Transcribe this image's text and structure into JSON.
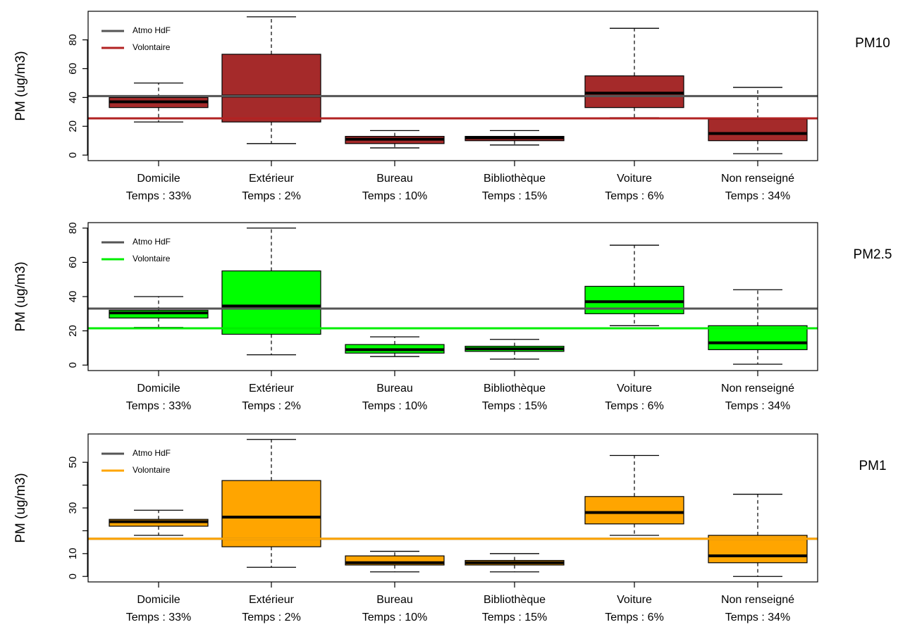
{
  "chart_data": [
    {
      "type": "boxplot",
      "title": "PM10",
      "ylabel": "PM (ug/m3)",
      "ylim": [
        0,
        96
      ],
      "yticks": [
        0,
        20,
        40,
        60,
        80
      ],
      "categories": [
        "Domicile",
        "Extérieur",
        "Bureau",
        "Bibliothèque",
        "Voiture",
        "Non renseigné"
      ],
      "time_labels": [
        "Temps : 33%",
        "Temps : 2%",
        "Temps : 10%",
        "Temps : 15%",
        "Temps : 6%",
        "Temps : 34%"
      ],
      "box_color": "#a52a2a",
      "boxes": [
        {
          "min": 23,
          "q1": 33,
          "median": 37,
          "q3": 40,
          "max": 50
        },
        {
          "min": 8,
          "q1": 23,
          "median": 41,
          "q3": 70,
          "max": 96
        },
        {
          "min": 5,
          "q1": 8,
          "median": 11,
          "q3": 13,
          "max": 17
        },
        {
          "min": 7,
          "q1": 10,
          "median": 12,
          "q3": 13,
          "max": 17
        },
        {
          "min": 26,
          "q1": 33,
          "median": 43,
          "q3": 55,
          "max": 88
        },
        {
          "min": 1,
          "q1": 10,
          "median": 15,
          "q3": 25,
          "max": 47
        }
      ],
      "reference_lines": [
        {
          "name": "Atmo HdF",
          "value": 41,
          "color": "#555555"
        },
        {
          "name": "Volontaire",
          "value": 25.5,
          "color": "#b22222"
        }
      ],
      "legend_position": "top-left"
    },
    {
      "type": "boxplot",
      "title": "PM2.5",
      "ylabel": "PM (ug/m3)",
      "ylim": [
        0,
        80
      ],
      "yticks": [
        0,
        20,
        40,
        60,
        80
      ],
      "categories": [
        "Domicile",
        "Extérieur",
        "Bureau",
        "Bibliothèque",
        "Voiture",
        "Non renseigné"
      ],
      "time_labels": [
        "Temps : 33%",
        "Temps : 2%",
        "Temps : 10%",
        "Temps : 15%",
        "Temps : 6%",
        "Temps : 34%"
      ],
      "box_color": "#00ff00",
      "boxes": [
        {
          "min": 22,
          "q1": 27.5,
          "median": 30.5,
          "q3": 32,
          "max": 40
        },
        {
          "min": 6,
          "q1": 18,
          "median": 34.5,
          "q3": 55,
          "max": 80
        },
        {
          "min": 5,
          "q1": 7,
          "median": 9,
          "q3": 12,
          "max": 16.5
        },
        {
          "min": 3.5,
          "q1": 8,
          "median": 9.5,
          "q3": 11,
          "max": 15
        },
        {
          "min": 23,
          "q1": 30,
          "median": 37,
          "q3": 46,
          "max": 70
        },
        {
          "min": 0.5,
          "q1": 9,
          "median": 13,
          "q3": 23,
          "max": 44
        }
      ],
      "reference_lines": [
        {
          "name": "Atmo HdF",
          "value": 33,
          "color": "#555555"
        },
        {
          "name": "Volontaire",
          "value": 21.5,
          "color": "#00ee00"
        }
      ],
      "legend_position": "top-left"
    },
    {
      "type": "boxplot",
      "title": "PM1",
      "ylabel": "PM (ug/m3)",
      "ylim": [
        0,
        60
      ],
      "yticks": [
        0,
        10,
        30,
        50
      ],
      "yminor": [
        20,
        40
      ],
      "categories": [
        "Domicile",
        "Extérieur",
        "Bureau",
        "Bibliothèque",
        "Voiture",
        "Non renseigné"
      ],
      "time_labels": [
        "Temps : 33%",
        "Temps : 2%",
        "Temps : 10%",
        "Temps : 15%",
        "Temps : 6%",
        "Temps : 34%"
      ],
      "box_color": "#ffa500",
      "boxes": [
        {
          "min": 18,
          "q1": 22,
          "median": 24,
          "q3": 25,
          "max": 29
        },
        {
          "min": 4,
          "q1": 13,
          "median": 26,
          "q3": 42,
          "max": 60
        },
        {
          "min": 2,
          "q1": 5,
          "median": 6,
          "q3": 9,
          "max": 11
        },
        {
          "min": 2,
          "q1": 5,
          "median": 6,
          "q3": 7,
          "max": 10
        },
        {
          "min": 18,
          "q1": 23,
          "median": 28,
          "q3": 35,
          "max": 53
        },
        {
          "min": 0,
          "q1": 6,
          "median": 9,
          "q3": 18,
          "max": 36
        }
      ],
      "reference_lines": [
        {
          "name": "Atmo HdF",
          "value": 16.5,
          "color": "#555555"
        },
        {
          "name": "Volontaire",
          "value": 16.5,
          "color": "#ffa500"
        }
      ],
      "legend_position": "top-left"
    }
  ]
}
